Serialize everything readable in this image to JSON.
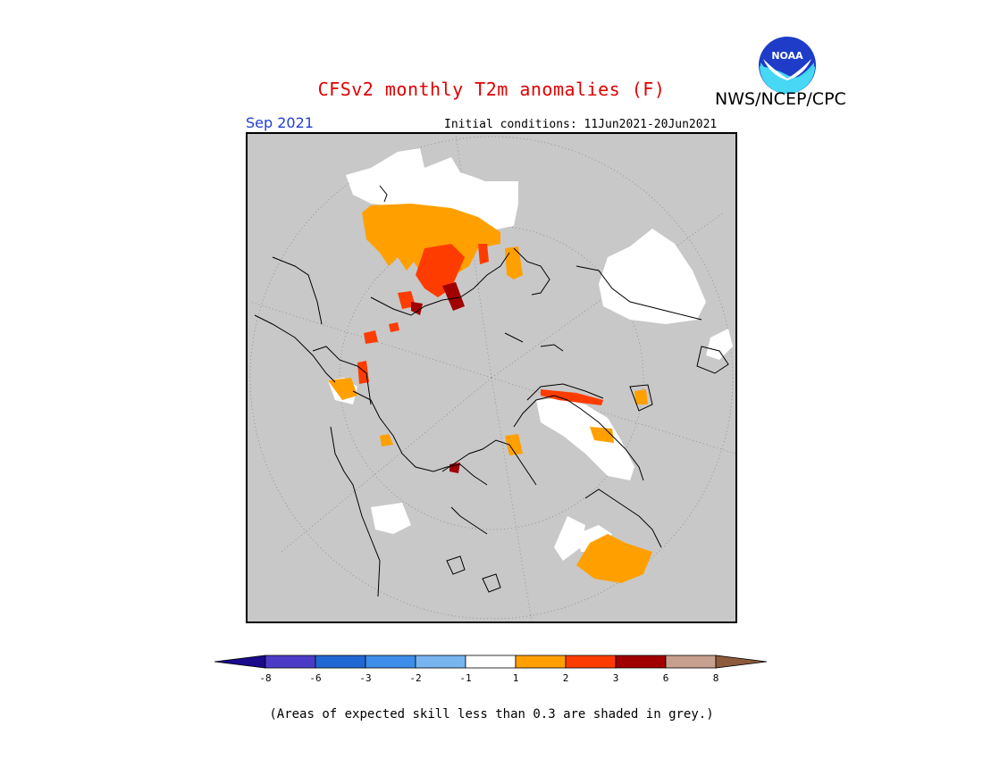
{
  "header": {
    "title": "CFSv2 monthly T2m anomalies (F)",
    "agency": "NWS/NCEP/CPC",
    "logo_text": "NOAA"
  },
  "map": {
    "valid_month": "Sep 2021",
    "initial_conditions": "Initial conditions: 11Jun2021-20Jun2021",
    "projection": "north-polar-stereographic",
    "background_color": "#c8c8c8",
    "coastline_color": "#000000"
  },
  "colorbar": {
    "labels": [
      "-8",
      "-6",
      "-3",
      "-2",
      "-1",
      "1",
      "2",
      "3",
      "6",
      "8"
    ],
    "colors": [
      "#1a0a8c",
      "#4b3cc8",
      "#2268d2",
      "#3c8ee8",
      "#78b4f0",
      "#ffffff",
      "#ffa000",
      "#ff3c00",
      "#a00000",
      "#c8a090",
      "#8c5a3c"
    ]
  },
  "footnote": "(Areas of expected skill less than 0.3 are shaded in grey.)"
}
